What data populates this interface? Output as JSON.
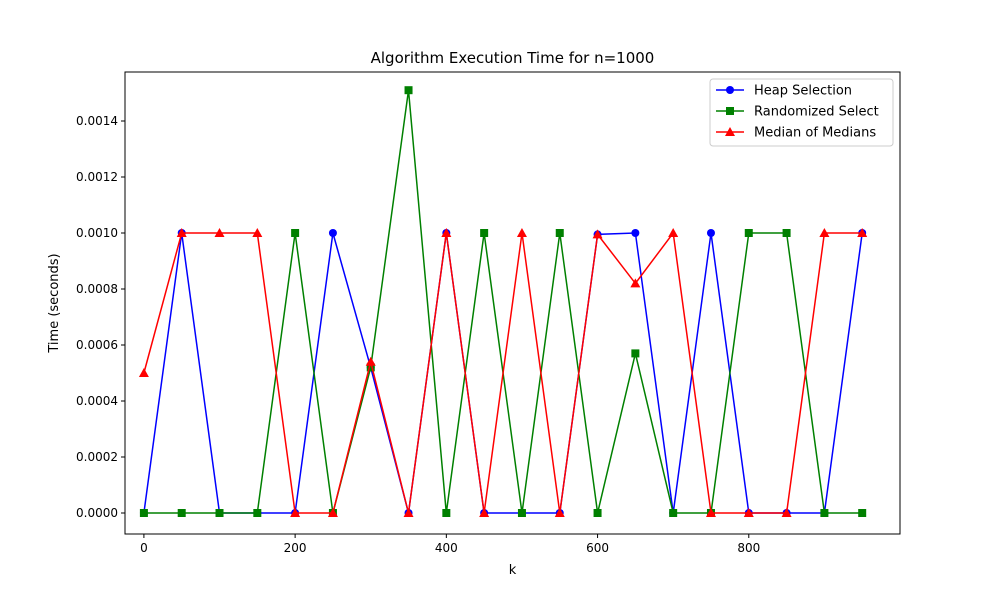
{
  "chart_data": {
    "type": "line",
    "title": "Algorithm Execution Time for n=1000",
    "xlabel": "k",
    "ylabel": "Time (seconds)",
    "xlim": [
      -25,
      1000
    ],
    "ylim": [
      -7.5e-05,
      0.001575
    ],
    "x_ticks": [
      0,
      200,
      400,
      600,
      800
    ],
    "y_ticks": [
      0.0,
      0.0002,
      0.0004,
      0.0006,
      0.0008,
      0.001,
      0.0012,
      0.0014
    ],
    "x_tick_labels": [
      "0",
      "200",
      "400",
      "600",
      "800"
    ],
    "y_tick_labels": [
      "0.0000",
      "0.0002",
      "0.0004",
      "0.0006",
      "0.0008",
      "0.0010",
      "0.0012",
      "0.0014"
    ],
    "grid": false,
    "legend_position": "top-right",
    "x": [
      0,
      50,
      100,
      150,
      200,
      250,
      300,
      350,
      400,
      450,
      500,
      550,
      600,
      650,
      700,
      750,
      800,
      850,
      900,
      950
    ],
    "series": [
      {
        "name": "Heap Selection",
        "color": "#0000ff",
        "marker": "circle",
        "values": [
          0,
          0.001,
          0,
          0,
          0,
          0.001,
          0.00052,
          0,
          0.001,
          0,
          0,
          0,
          0.000995,
          0.001,
          0,
          0.001,
          0,
          0,
          0,
          0.001
        ]
      },
      {
        "name": "Randomized Select",
        "color": "#008000",
        "marker": "square",
        "values": [
          0,
          0,
          0,
          0,
          0.001,
          0,
          0.00052,
          0.00151,
          0,
          0.001,
          0,
          0.001,
          0,
          0.00057,
          0,
          0,
          0.001,
          0.001,
          0,
          0
        ]
      },
      {
        "name": "Median of Medians",
        "color": "#ff0000",
        "marker": "triangle",
        "values": [
          0.0005,
          0.001,
          0.001,
          0.001,
          0,
          0,
          0.00054,
          0,
          0.001,
          0,
          0.001,
          0,
          0.000995,
          0.00082,
          0.001,
          0,
          0,
          0,
          0.001,
          0.001
        ]
      }
    ]
  }
}
